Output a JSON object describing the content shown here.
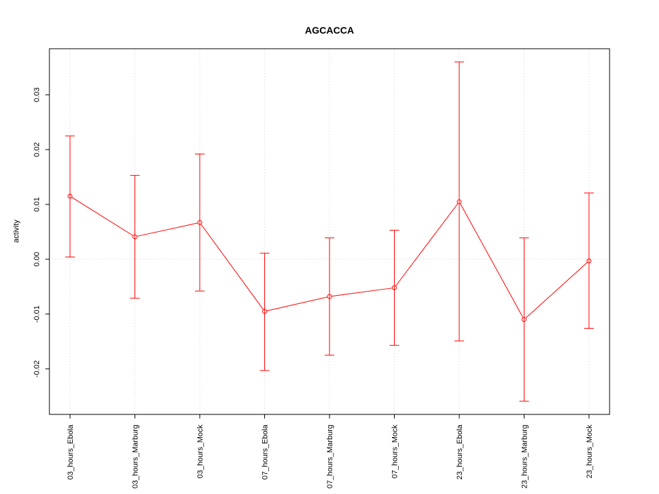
{
  "chart_data": {
    "type": "line",
    "title": "AGCACCA",
    "xlabel": "",
    "ylabel": "activity",
    "categories": [
      "03_hours_Ebola",
      "03_hours_Marburg",
      "03_hours_Mock",
      "07_hours_Ebola",
      "07_hours_Marburg",
      "07_hours_Mock",
      "23_hours_Ebola",
      "23_hours_Marburg",
      "23_hours_Mock"
    ],
    "series": [
      {
        "values": [
          0.0115,
          0.0041,
          0.0067,
          -0.0095,
          -0.0068,
          -0.0052,
          0.0105,
          -0.011,
          -0.0003
        ],
        "upper": [
          0.0225,
          0.0153,
          0.0192,
          0.0011,
          0.0039,
          0.0053,
          0.036,
          0.0039,
          0.0121
        ],
        "lower": [
          0.0004,
          -0.0071,
          -0.0058,
          -0.0203,
          -0.0175,
          -0.0157,
          -0.0149,
          -0.0259,
          -0.0126
        ]
      }
    ],
    "yticks": [
      -0.02,
      -0.01,
      0.0,
      0.01,
      0.02,
      0.03
    ],
    "ytick_labels": [
      "-0.02",
      "-0.01",
      "0.00",
      "0.01",
      "0.02",
      "0.03"
    ],
    "ylim": [
      -0.0283,
      0.0384
    ],
    "grid": true,
    "colors": {
      "series": "#ff0000",
      "grid": "#d3d3d3",
      "axis": "#000000"
    }
  }
}
